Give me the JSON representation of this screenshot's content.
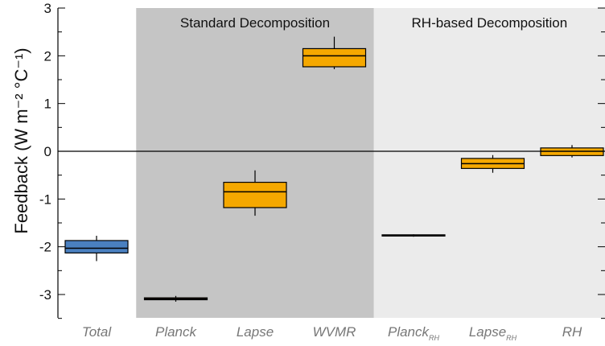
{
  "chart_data": {
    "type": "box",
    "ylabel": "Feedback (W m⁻² °C⁻¹)",
    "ylim": [
      -3.5,
      3
    ],
    "yticks": [
      3,
      2,
      1,
      0,
      -1,
      -2,
      -3
    ],
    "ytick_labels": [
      "3",
      "2",
      "1",
      "0",
      "-1",
      "-2",
      "-3"
    ],
    "zero_line": 0,
    "regions": [
      {
        "title": "Standard Decomposition",
        "categories": [
          "Planck",
          "Lapse",
          "WVMR"
        ],
        "shade": "#c5c5c5"
      },
      {
        "title": "RH-based Decomposition",
        "categories": [
          "Planck_RH",
          "Lapse_RH",
          "RH"
        ],
        "shade": "#ebebeb"
      }
    ],
    "categories": [
      {
        "label": "Total",
        "sub": ""
      },
      {
        "label": "Planck",
        "sub": ""
      },
      {
        "label": "Lapse",
        "sub": ""
      },
      {
        "label": "WVMR",
        "sub": ""
      },
      {
        "label": "Planck",
        "sub": "RH"
      },
      {
        "label": "Lapse",
        "sub": "RH"
      },
      {
        "label": "RH",
        "sub": ""
      }
    ],
    "boxes": [
      {
        "min": -2.3,
        "q1": -2.13,
        "median": -2.03,
        "q3": -1.87,
        "max": -1.77,
        "color": "#4a80c0"
      },
      {
        "min": -3.15,
        "q1": -3.11,
        "median": -3.09,
        "q3": -3.07,
        "max": -3.03,
        "color": "#f5a800"
      },
      {
        "min": -1.35,
        "q1": -1.18,
        "median": -0.85,
        "q3": -0.65,
        "max": -0.4,
        "color": "#f5a800"
      },
      {
        "min": 1.72,
        "q1": 1.77,
        "median": 2.0,
        "q3": 2.15,
        "max": 2.4,
        "color": "#f5a800"
      },
      {
        "min": -1.79,
        "q1": -1.77,
        "median": -1.76,
        "q3": -1.75,
        "max": -1.74,
        "color": "#f5a800"
      },
      {
        "min": -0.45,
        "q1": -0.36,
        "median": -0.26,
        "q3": -0.15,
        "max": -0.08,
        "color": "#f5a800"
      },
      {
        "min": -0.13,
        "q1": -0.09,
        "median": 0.0,
        "q3": 0.07,
        "max": 0.13,
        "color": "#f5a800"
      }
    ]
  }
}
